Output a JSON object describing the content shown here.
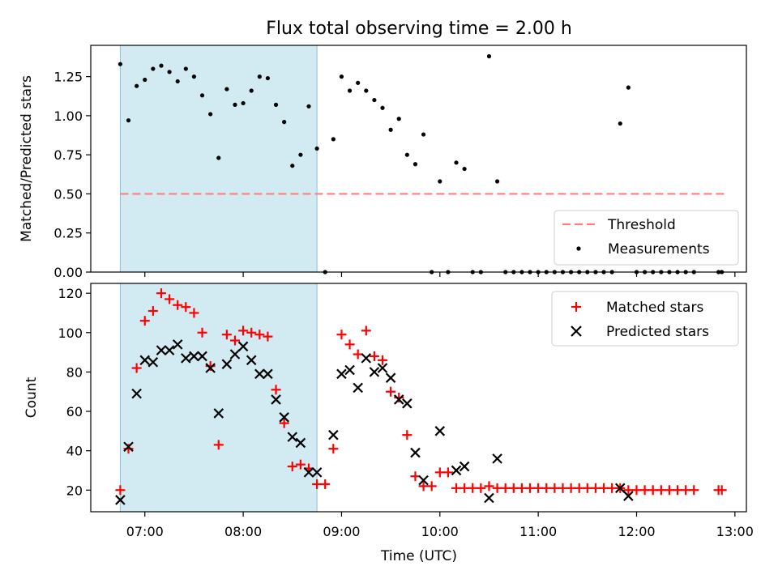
{
  "title": "Flux total observing time = 2.00 h",
  "chart_data": [
    {
      "type": "scatter",
      "panel": "top",
      "ylabel": "Matched/Predicted stars",
      "xlabel": "",
      "xlim": [
        "06:27",
        "13:07"
      ],
      "ylim": [
        0,
        1.45
      ],
      "yticks": [
        "0.00",
        "0.25",
        "0.50",
        "0.75",
        "1.00",
        "1.25"
      ],
      "xticks": [
        "07:00",
        "08:00",
        "09:00",
        "10:00",
        "11:00",
        "12:00",
        "13:00"
      ],
      "grid": false,
      "legend_position": "lower-right",
      "shaded_span": [
        "06:45",
        "08:45"
      ],
      "threshold": {
        "name": "Threshold",
        "value": 0.5,
        "x_range": [
          "06:45",
          "12:55"
        ],
        "color": "#ff7f7f"
      },
      "series": [
        {
          "name": "Measurements",
          "marker": "dot",
          "color": "#000000",
          "points": [
            [
              "06:45",
              1.33
            ],
            [
              "06:50",
              0.97
            ],
            [
              "06:55",
              1.19
            ],
            [
              "07:00",
              1.23
            ],
            [
              "07:05",
              1.3
            ],
            [
              "07:10",
              1.32
            ],
            [
              "07:15",
              1.28
            ],
            [
              "07:20",
              1.22
            ],
            [
              "07:25",
              1.3
            ],
            [
              "07:30",
              1.25
            ],
            [
              "07:35",
              1.13
            ],
            [
              "07:40",
              1.01
            ],
            [
              "07:45",
              0.73
            ],
            [
              "07:50",
              1.17
            ],
            [
              "07:55",
              1.07
            ],
            [
              "08:00",
              1.08
            ],
            [
              "08:05",
              1.16
            ],
            [
              "08:10",
              1.25
            ],
            [
              "08:15",
              1.24
            ],
            [
              "08:20",
              1.07
            ],
            [
              "08:25",
              0.96
            ],
            [
              "08:30",
              0.68
            ],
            [
              "08:35",
              0.75
            ],
            [
              "08:40",
              1.06
            ],
            [
              "08:45",
              0.79
            ],
            [
              "08:50",
              0.0
            ],
            [
              "08:55",
              0.85
            ],
            [
              "09:00",
              1.25
            ],
            [
              "09:05",
              1.16
            ],
            [
              "09:10",
              1.21
            ],
            [
              "09:15",
              1.16
            ],
            [
              "09:20",
              1.1
            ],
            [
              "09:25",
              1.05
            ],
            [
              "09:30",
              0.91
            ],
            [
              "09:35",
              0.98
            ],
            [
              "09:40",
              0.75
            ],
            [
              "09:45",
              0.69
            ],
            [
              "09:50",
              0.88
            ],
            [
              "09:55",
              0.0
            ],
            [
              "10:00",
              0.58
            ],
            [
              "10:05",
              0.0
            ],
            [
              "10:10",
              0.7
            ],
            [
              "10:15",
              0.66
            ],
            [
              "10:20",
              0.0
            ],
            [
              "10:25",
              0.0
            ],
            [
              "10:30",
              1.38
            ],
            [
              "10:35",
              0.58
            ],
            [
              "10:40",
              0.0
            ],
            [
              "10:45",
              0.0
            ],
            [
              "10:50",
              0.0
            ],
            [
              "10:55",
              0.0
            ],
            [
              "11:00",
              0.0
            ],
            [
              "11:05",
              0.0
            ],
            [
              "11:10",
              0.0
            ],
            [
              "11:15",
              0.0
            ],
            [
              "11:20",
              0.0
            ],
            [
              "11:25",
              0.0
            ],
            [
              "11:30",
              0.0
            ],
            [
              "11:35",
              0.0
            ],
            [
              "11:40",
              0.0
            ],
            [
              "11:45",
              0.0
            ],
            [
              "11:50",
              0.95
            ],
            [
              "11:55",
              1.18
            ],
            [
              "12:00",
              0.0
            ],
            [
              "12:05",
              0.0
            ],
            [
              "12:10",
              0.0
            ],
            [
              "12:15",
              0.0
            ],
            [
              "12:20",
              0.0
            ],
            [
              "12:25",
              0.0
            ],
            [
              "12:30",
              0.0
            ],
            [
              "12:35",
              0.0
            ],
            [
              "12:50",
              0.0
            ],
            [
              "12:52",
              0.0
            ]
          ]
        }
      ]
    },
    {
      "type": "scatter",
      "panel": "bottom",
      "ylabel": "Count",
      "xlabel": "Time (UTC)",
      "xlim": [
        "06:27",
        "13:07"
      ],
      "ylim": [
        9,
        125
      ],
      "yticks": [
        "20",
        "40",
        "60",
        "80",
        "100",
        "120"
      ],
      "xticks": [
        "07:00",
        "08:00",
        "09:00",
        "10:00",
        "11:00",
        "12:00",
        "13:00"
      ],
      "grid": false,
      "legend_position": "upper-right",
      "shaded_span": [
        "06:45",
        "08:45"
      ],
      "series": [
        {
          "name": "Matched stars",
          "marker": "plus",
          "color": "#ff0000",
          "points": [
            [
              "06:45",
              20
            ],
            [
              "06:50",
              41
            ],
            [
              "06:55",
              82
            ],
            [
              "07:00",
              106
            ],
            [
              "07:05",
              111
            ],
            [
              "07:10",
              120
            ],
            [
              "07:15",
              117
            ],
            [
              "07:20",
              114
            ],
            [
              "07:25",
              113
            ],
            [
              "07:30",
              110
            ],
            [
              "07:35",
              100
            ],
            [
              "07:40",
              83
            ],
            [
              "07:45",
              43
            ],
            [
              "07:50",
              99
            ],
            [
              "07:55",
              96
            ],
            [
              "08:00",
              101
            ],
            [
              "08:05",
              100
            ],
            [
              "08:10",
              99
            ],
            [
              "08:15",
              98
            ],
            [
              "08:20",
              71
            ],
            [
              "08:25",
              54
            ],
            [
              "08:30",
              32
            ],
            [
              "08:35",
              33
            ],
            [
              "08:40",
              31
            ],
            [
              "08:45",
              23
            ],
            [
              "08:50",
              23
            ],
            [
              "08:55",
              41
            ],
            [
              "09:00",
              99
            ],
            [
              "09:05",
              94
            ],
            [
              "09:10",
              89
            ],
            [
              "09:15",
              101
            ],
            [
              "09:20",
              88
            ],
            [
              "09:25",
              86
            ],
            [
              "09:30",
              70
            ],
            [
              "09:35",
              67
            ],
            [
              "09:40",
              48
            ],
            [
              "09:45",
              27
            ],
            [
              "09:50",
              22
            ],
            [
              "09:55",
              22
            ],
            [
              "10:00",
              29
            ],
            [
              "10:05",
              29
            ],
            [
              "10:10",
              21
            ],
            [
              "10:15",
              21
            ],
            [
              "10:20",
              21
            ],
            [
              "10:25",
              21
            ],
            [
              "10:30",
              22
            ],
            [
              "10:35",
              21
            ],
            [
              "10:40",
              21
            ],
            [
              "10:45",
              21
            ],
            [
              "10:50",
              21
            ],
            [
              "10:55",
              21
            ],
            [
              "11:00",
              21
            ],
            [
              "11:05",
              21
            ],
            [
              "11:10",
              21
            ],
            [
              "11:15",
              21
            ],
            [
              "11:20",
              21
            ],
            [
              "11:25",
              21
            ],
            [
              "11:30",
              21
            ],
            [
              "11:35",
              21
            ],
            [
              "11:40",
              21
            ],
            [
              "11:45",
              21
            ],
            [
              "11:50",
              21
            ],
            [
              "11:55",
              20
            ],
            [
              "12:00",
              20
            ],
            [
              "12:05",
              20
            ],
            [
              "12:10",
              20
            ],
            [
              "12:15",
              20
            ],
            [
              "12:20",
              20
            ],
            [
              "12:25",
              20
            ],
            [
              "12:30",
              20
            ],
            [
              "12:35",
              20
            ],
            [
              "12:50",
              20
            ],
            [
              "12:52",
              20
            ]
          ]
        },
        {
          "name": "Predicted stars",
          "marker": "x",
          "color": "#000000",
          "points": [
            [
              "06:45",
              15
            ],
            [
              "06:50",
              42
            ],
            [
              "06:55",
              69
            ],
            [
              "07:00",
              86
            ],
            [
              "07:05",
              85
            ],
            [
              "07:10",
              91
            ],
            [
              "07:15",
              91
            ],
            [
              "07:20",
              94
            ],
            [
              "07:25",
              87
            ],
            [
              "07:30",
              88
            ],
            [
              "07:35",
              88
            ],
            [
              "07:40",
              82
            ],
            [
              "07:45",
              59
            ],
            [
              "07:50",
              84
            ],
            [
              "07:55",
              89
            ],
            [
              "08:00",
              93
            ],
            [
              "08:05",
              86
            ],
            [
              "08:10",
              79
            ],
            [
              "08:15",
              79
            ],
            [
              "08:20",
              66
            ],
            [
              "08:25",
              57
            ],
            [
              "08:30",
              47
            ],
            [
              "08:35",
              44
            ],
            [
              "08:40",
              29
            ],
            [
              "08:45",
              29
            ],
            [
              "08:55",
              48
            ],
            [
              "09:00",
              79
            ],
            [
              "09:05",
              81
            ],
            [
              "09:10",
              72
            ],
            [
              "09:15",
              87
            ],
            [
              "09:20",
              80
            ],
            [
              "09:25",
              82
            ],
            [
              "09:30",
              77
            ],
            [
              "09:35",
              66
            ],
            [
              "09:40",
              64
            ],
            [
              "09:45",
              39
            ],
            [
              "09:50",
              25
            ],
            [
              "10:00",
              50
            ],
            [
              "10:10",
              30
            ],
            [
              "10:15",
              32
            ],
            [
              "10:30",
              16
            ],
            [
              "10:35",
              36
            ],
            [
              "11:50",
              21
            ],
            [
              "11:55",
              17
            ]
          ]
        }
      ]
    }
  ]
}
